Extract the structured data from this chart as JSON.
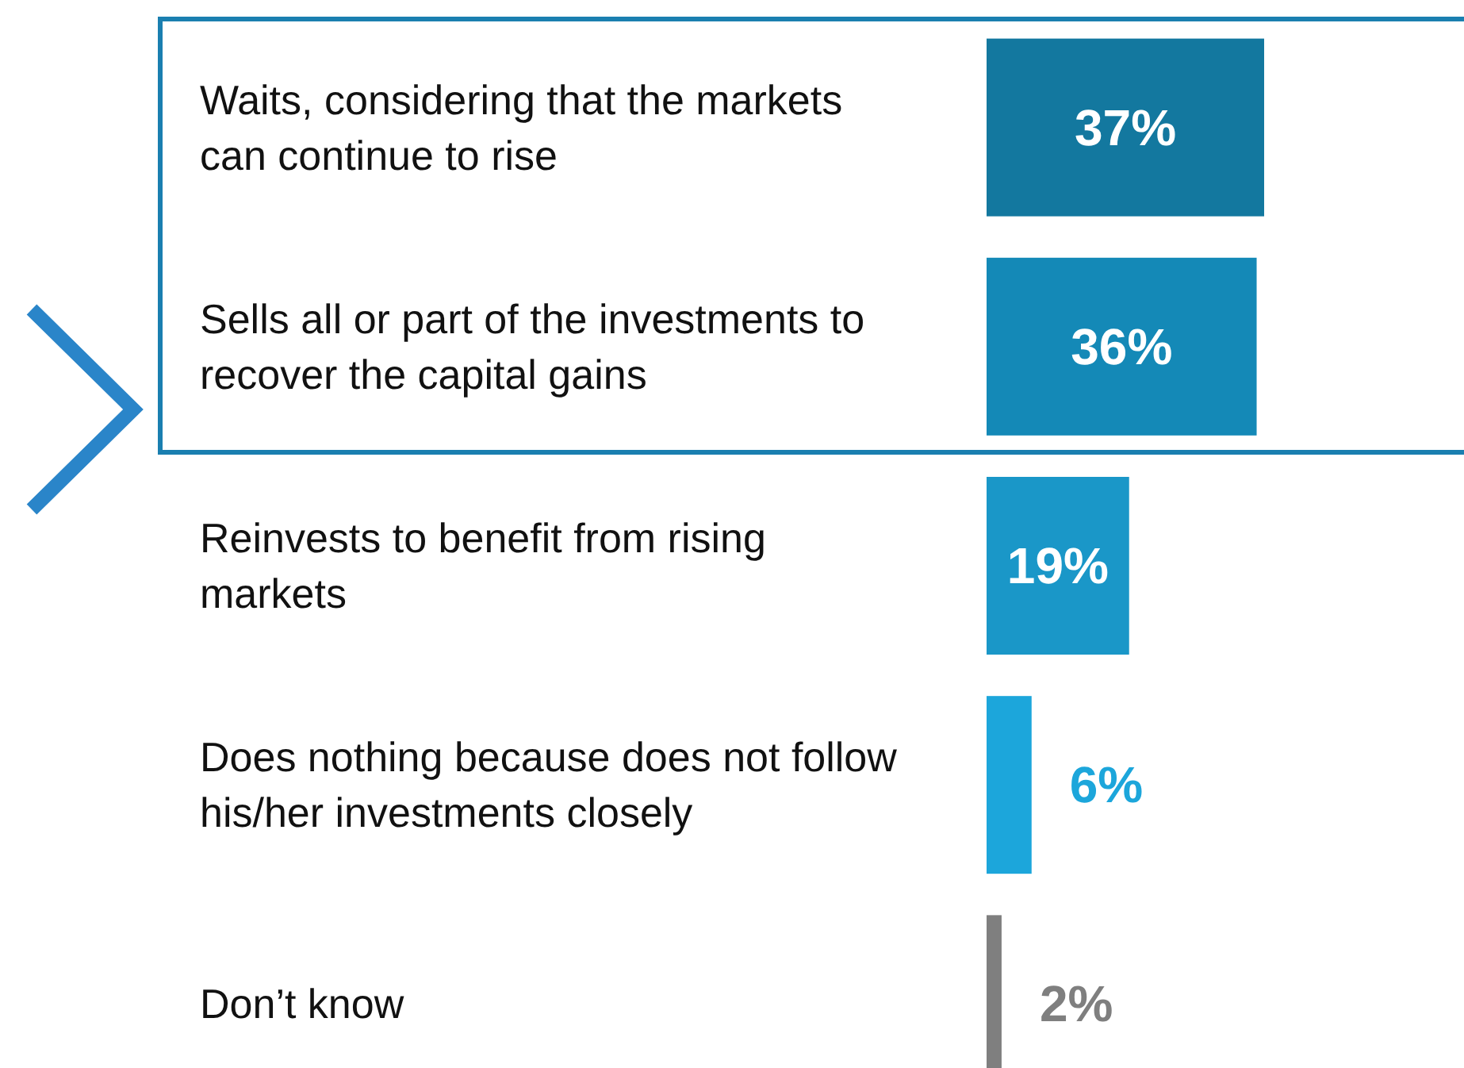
{
  "chart_data": {
    "type": "bar",
    "orientation": "horizontal",
    "categories": [
      "Waits, considering that the markets can continue to rise",
      "Sells all or part of the investments to recover the capital gains",
      "Reinvests to benefit from rising markets",
      "Does nothing because does not follow his/her investments closely",
      "Don’t know"
    ],
    "values": [
      37,
      36,
      19,
      6,
      2
    ],
    "value_labels": [
      "37%",
      "36%",
      "19%",
      "6%",
      "2%"
    ],
    "colors": [
      "#13789f",
      "#1489b7",
      "#1a97c8",
      "#1ca6db",
      "#7f7f7f"
    ]
  }
}
